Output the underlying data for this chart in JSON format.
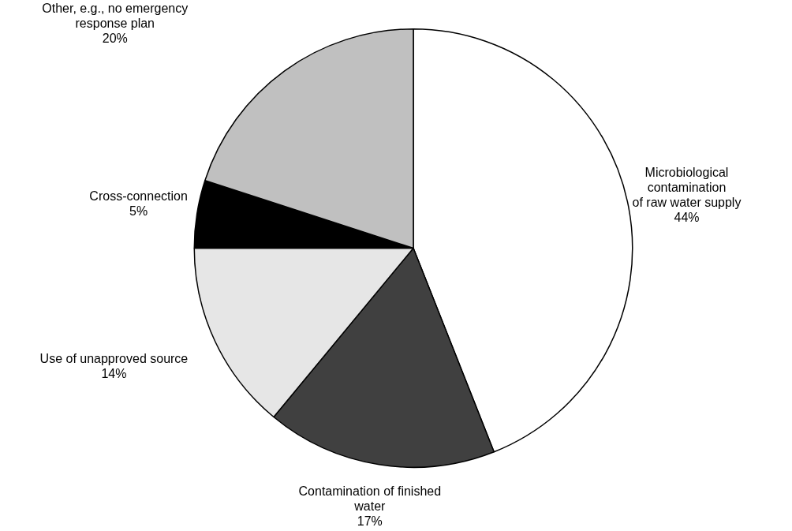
{
  "chart_data": {
    "type": "pie",
    "categories": [
      "Microbiological\ncontamination\nof raw water supply",
      "Contamination of finished\nwater",
      "Use of unapproved source",
      "Cross-connection",
      "Other, e.g., no emergency\nresponse plan"
    ],
    "values": [
      44,
      17,
      14,
      5,
      20
    ],
    "colors": [
      "#ffffff",
      "#404040",
      "#e6e6e6",
      "#000000",
      "#c0c0c0"
    ],
    "value_labels": [
      "44%",
      "17%",
      "14%",
      "5%",
      "20%"
    ],
    "legend": false
  }
}
